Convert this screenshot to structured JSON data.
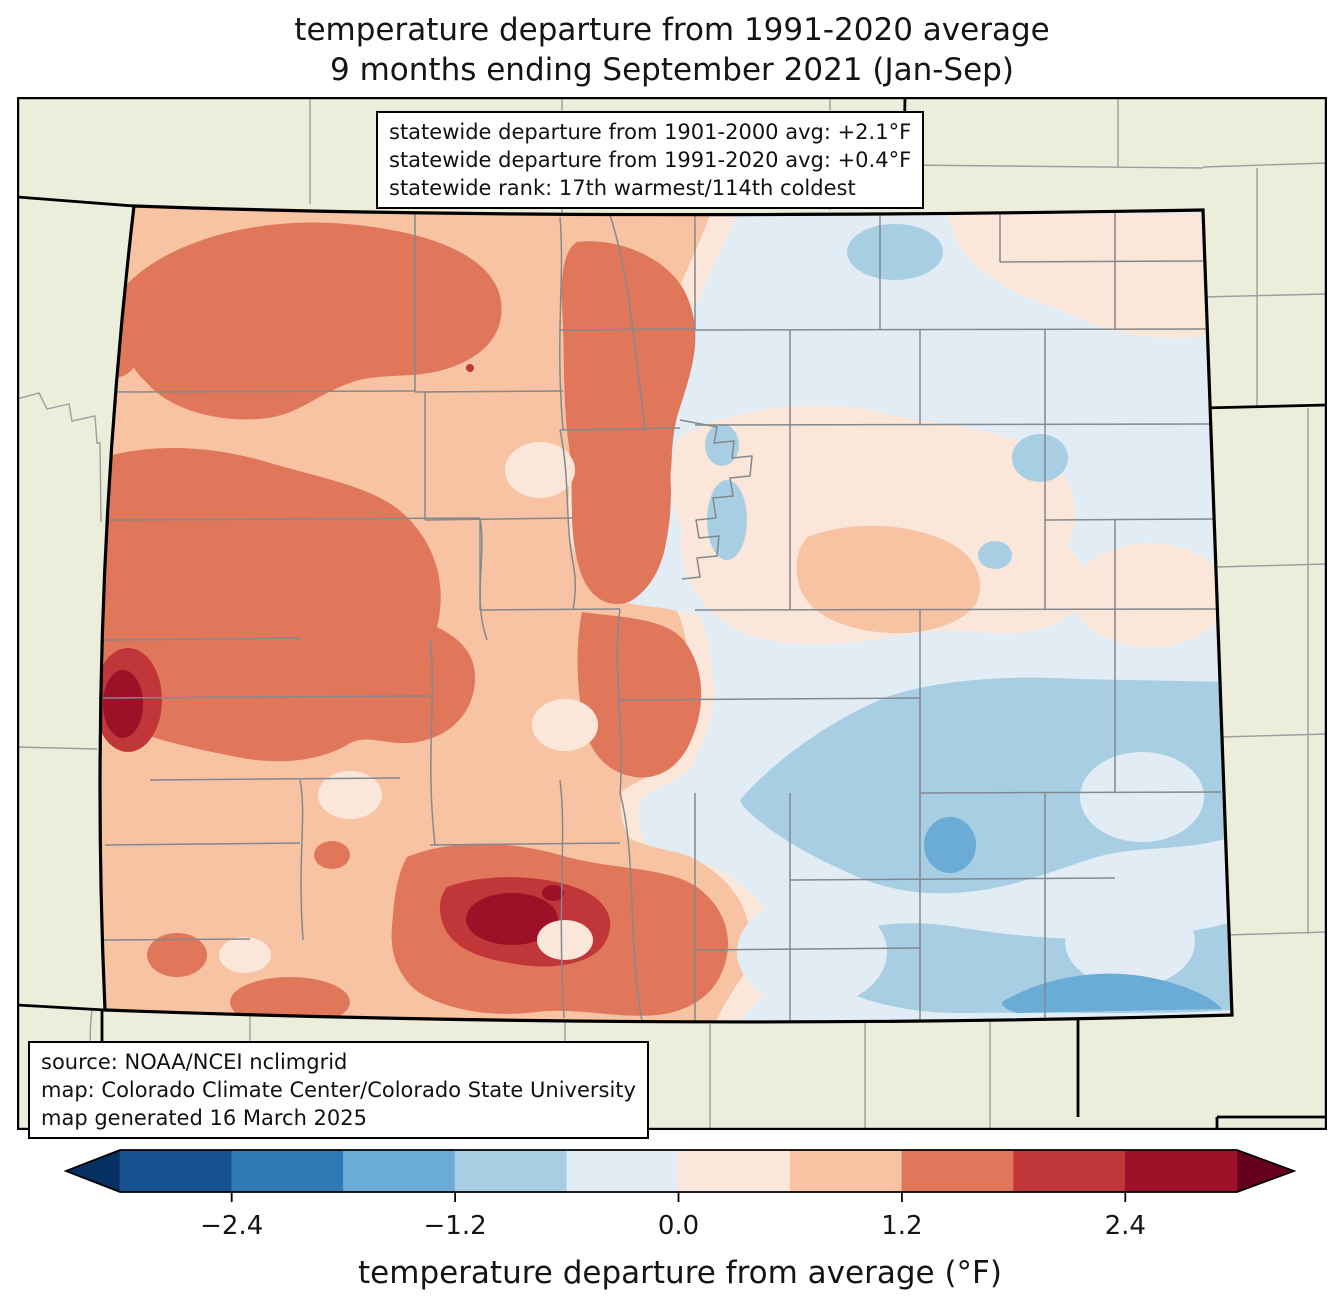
{
  "title": {
    "line1": "temperature departure from 1991-2020 average",
    "line2": "9 months ending September 2021 (Jan-Sep)"
  },
  "info_box": {
    "line1": "statewide departure from 1901-2000 avg: +2.1°F",
    "line2": "statewide departure from 1991-2020 avg: +0.4°F",
    "line3": "statewide rank: 17th warmest/114th coldest"
  },
  "source_box": {
    "line1": "source: NOAA/NCEI nclimgrid",
    "line2": "map: Colorado Climate Center/Colorado State University",
    "line3": "map generated 16 March 2025"
  },
  "colorbar": {
    "label": "temperature departure from average (°F)",
    "range_min": -3,
    "range_max": 3,
    "segment_width_units": 0.6,
    "tick_labels": [
      "−2.4",
      "−1.2",
      "0.0",
      "1.2",
      "2.4"
    ],
    "tick_values": [
      -2.4,
      -1.2,
      0.0,
      1.2,
      2.4
    ],
    "segment_colors": [
      "#175290",
      "#3079b5",
      "#6aacd5",
      "#a8cee4",
      "#e1ecf5",
      "#fbe7da",
      "#f8c3a3",
      "#e0765a",
      "#c13639",
      "#9c1127"
    ],
    "under_arrow_color": "#053061",
    "over_arrow_color": "#67001f"
  },
  "palette": {
    "outside": "#ecedda",
    "s3": "#6aacd5",
    "s4": "#a8cee4",
    "s5": "#e1ecf5",
    "s6": "#fbe7da",
    "s7": "#f8c3a3",
    "s8": "#e0765a",
    "s9": "#c13639",
    "s10": "#9c1127",
    "state_border": "#000000",
    "county_line": "#83898e",
    "neighbor_county_line": "#9aa0a0"
  },
  "map": {
    "region": "Colorado",
    "layer": "temperature departure (°F), Jan-Sep 2021 vs 1991-2020 normals"
  }
}
